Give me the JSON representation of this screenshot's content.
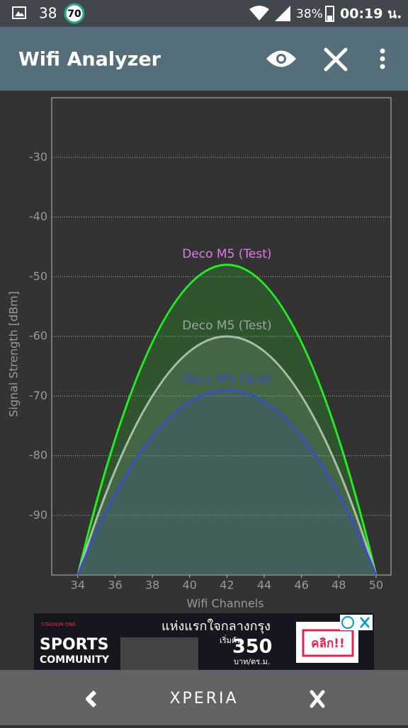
{
  "status_bar": {
    "notification_count": "38",
    "badge": "70",
    "battery": "38%",
    "time": "00:19 น."
  },
  "app_bar": {
    "title": "Wifi Analyzer"
  },
  "chart_data": {
    "type": "line",
    "x_label": "Wifi Channels",
    "y_label": "Signal Strength [dBm]",
    "xlim": [
      32.6,
      50.8
    ],
    "ylim": [
      -100,
      -20
    ],
    "xticks": [
      34,
      36,
      38,
      40,
      42,
      44,
      46,
      48,
      50
    ],
    "yticks": [
      -30,
      -40,
      -50,
      -60,
      -70,
      -80,
      -90
    ],
    "grid": true,
    "series": [
      {
        "name": "Deco M5 (Test)",
        "color": "#22ee22",
        "label_color": "#e07be8",
        "x": [
          34,
          42,
          50
        ],
        "values": [
          -100,
          -48,
          -100
        ]
      },
      {
        "name": "Deco M5 (Test)",
        "color": "#a9bfa9",
        "label_color": "#9aa69a",
        "x": [
          34,
          42,
          50
        ],
        "values": [
          -100,
          -60,
          -100
        ]
      },
      {
        "name": "Deco M5 (Test)",
        "color": "#3a4fc4",
        "label_color": "#3a4fc4",
        "x": [
          34,
          42,
          50
        ],
        "values": [
          -100,
          -69,
          -100
        ]
      }
    ]
  },
  "ad": {
    "brand_small": "STADIUM ONE",
    "brand_1": "SPORTS",
    "brand_2": "COMMUNITY",
    "headline": "แห่งแรกใจกลางกรุง",
    "price_prefix": "เริ่มต้น",
    "price": "350",
    "price_unit": "บาท/ตร.ม.",
    "cta": "คลิก!!"
  },
  "nav_bar": {
    "brand": "XPERIA"
  }
}
